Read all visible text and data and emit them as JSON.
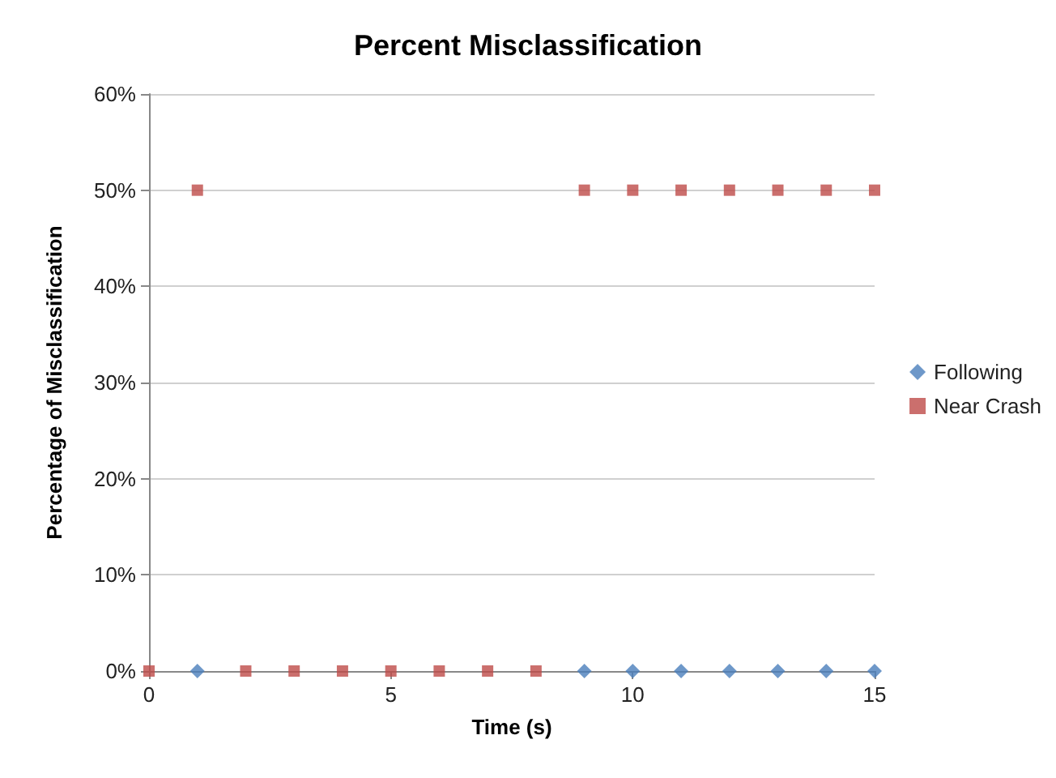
{
  "chart_data": {
    "type": "scatter",
    "title": "Percent Misclassification",
    "xlabel": "Time (s)",
    "ylabel": "Percentage of Misclassification",
    "x": [
      0,
      1,
      2,
      3,
      4,
      5,
      6,
      7,
      8,
      9,
      10,
      11,
      12,
      13,
      14,
      15
    ],
    "series": [
      {
        "name": "Following",
        "color": "#4a7ebb",
        "marker": "diamond",
        "values": [
          null,
          0,
          null,
          null,
          null,
          null,
          null,
          null,
          null,
          0,
          0,
          0,
          0,
          0,
          0,
          0
        ]
      },
      {
        "name": "Near Crash",
        "color": "#be4b48",
        "marker": "square",
        "values": [
          0,
          50,
          0,
          0,
          0,
          0,
          0,
          0,
          0,
          50,
          50,
          50,
          50,
          50,
          50,
          50
        ]
      }
    ],
    "xlim": [
      0,
      15
    ],
    "xticks": [
      0,
      5,
      10,
      15
    ],
    "ylim": [
      0,
      60
    ],
    "yticks": [
      {
        "value": 0,
        "label": "0%"
      },
      {
        "value": 10,
        "label": "10%"
      },
      {
        "value": 20,
        "label": "20%"
      },
      {
        "value": 30,
        "label": "30%"
      },
      {
        "value": 40,
        "label": "40%"
      },
      {
        "value": 50,
        "label": "50%"
      },
      {
        "value": 60,
        "label": "60%"
      }
    ],
    "grid": "y",
    "legend": "right"
  }
}
